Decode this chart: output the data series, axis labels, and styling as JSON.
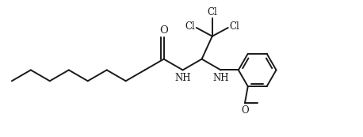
{
  "bg_color": "#ffffff",
  "line_color": "#1a1a1a",
  "line_width": 1.4,
  "font_size": 8.5,
  "figsize": [
    4.58,
    1.73
  ],
  "dpi": 100,
  "xlim": [
    0,
    11.5
  ],
  "ylim": [
    0,
    4.5
  ]
}
